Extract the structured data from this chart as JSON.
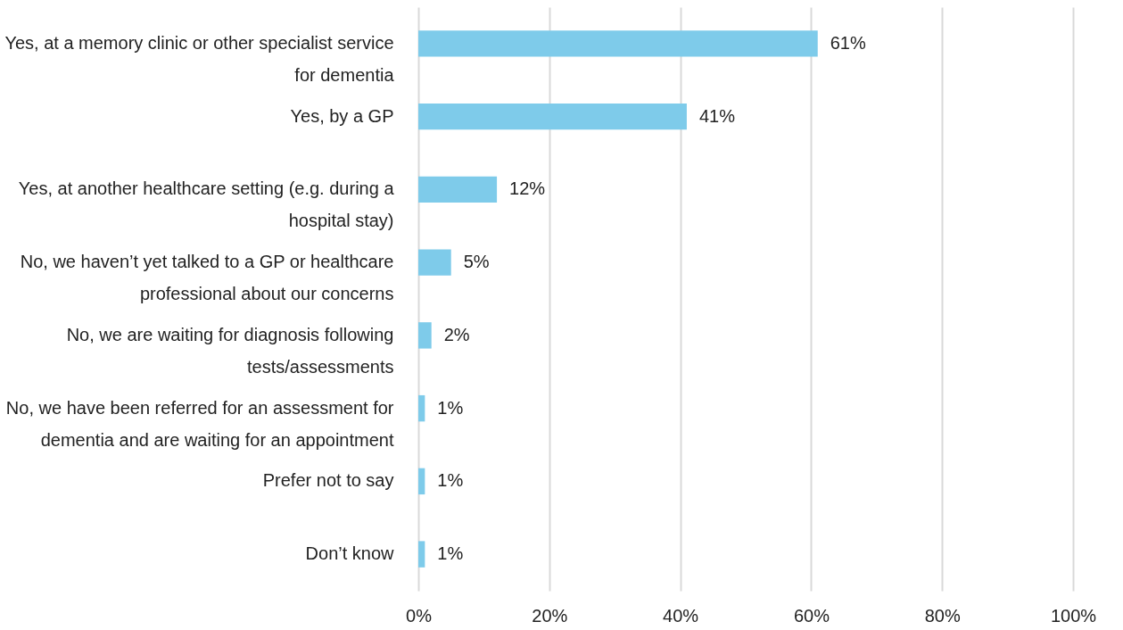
{
  "chart_data": {
    "type": "bar",
    "orientation": "horizontal",
    "categories": [
      "Yes, at a memory clinic or other specialist service for dementia",
      "Yes, by a GP",
      "Yes, at another healthcare setting (e.g. during a hospital stay)",
      "No, we haven’t yet talked to a GP or healthcare professional about our concerns",
      "No, we are waiting for diagnosis following tests/assessments",
      "No, we have been referred for an assessment for dementia and are waiting for an appointment",
      "Prefer not to say",
      "Don’t know"
    ],
    "values": [
      61,
      41,
      12,
      5,
      2,
      1,
      1,
      1
    ],
    "value_labels": [
      "61%",
      "41%",
      "12%",
      "5%",
      "2%",
      "1%",
      "1%",
      "1%"
    ],
    "color": "#7ecbea",
    "xlim": [
      0,
      100
    ],
    "xticks": [
      {
        "value": 0,
        "label": "0%"
      },
      {
        "value": 20,
        "label": "20%"
      },
      {
        "value": 40,
        "label": "40%"
      },
      {
        "value": 60,
        "label": "60%"
      },
      {
        "value": 80,
        "label": "80%"
      },
      {
        "value": 100,
        "label": "100%"
      }
    ],
    "grid": "x"
  }
}
